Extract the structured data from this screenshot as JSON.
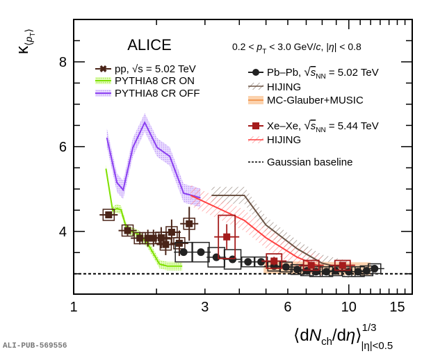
{
  "chart_data": {
    "type": "scatter",
    "title": "ALICE",
    "subtitle": "0.2 < p_T < 3.0 GeV/c, |η| < 0.8",
    "xlabel": "⟨dN_ch/dη⟩^(1/3) |η|<0.5",
    "ylabel": "κ⟨p_T⟩",
    "xscale": "log",
    "xlim": [
      1,
      17
    ],
    "ylim": [
      2.52,
      9.0
    ],
    "xticks": [
      1,
      3,
      6,
      10,
      15
    ],
    "xtick_labels": [
      "1",
      "3",
      "6",
      "10",
      "15"
    ],
    "yticks": [
      4,
      6,
      8
    ],
    "ytick_labels": [
      "4",
      "6",
      "8"
    ],
    "legend_left": "top-left",
    "legend_right": "top-right",
    "series": [
      {
        "name": "pp, √s = 5.02 TeV",
        "kind": "points",
        "marker": "x-star",
        "color": "#4a2418",
        "x": [
          1.34,
          1.57,
          1.74,
          1.86,
          1.95,
          2.08,
          2.16,
          2.27,
          2.42,
          2.63
        ],
        "y": [
          4.39,
          4.02,
          3.84,
          3.84,
          3.84,
          3.85,
          3.69,
          3.98,
          3.72,
          4.18
        ],
        "yerr": [
          0.08,
          0.12,
          0.15,
          0.2,
          0.2,
          0.25,
          0.25,
          0.3,
          0.3,
          0.4
        ]
      },
      {
        "name": "PYTHIA8 CR ON",
        "kind": "band",
        "color": "#7fe000",
        "x": [
          1.31,
          1.386,
          1.436,
          1.486,
          1.56,
          1.72,
          1.855,
          2.05,
          2.19,
          2.48
        ],
        "y": [
          5.48,
          4.49,
          4.54,
          4.51,
          4.05,
          3.93,
          3.72,
          3.23,
          3.18,
          3.18
        ],
        "err": 0.1
      },
      {
        "name": "PYTHIA8 CR OFF",
        "kind": "band",
        "color": "#8a3ff0",
        "x": [
          1.32,
          1.436,
          1.513,
          1.641,
          1.812,
          2.01,
          2.235,
          2.51,
          2.69,
          2.89
        ],
        "y": [
          6.21,
          5.15,
          4.98,
          5.98,
          6.57,
          5.98,
          5.77,
          4.9,
          4.85,
          4.79
        ],
        "err": 0.22
      },
      {
        "name": "Pb–Pb, √s_NN = 5.02 TeV",
        "kind": "points",
        "marker": "circle",
        "color": "#222222",
        "x": [
          2.51,
          2.9,
          3.3,
          3.78,
          4.3,
          4.8,
          5.35,
          5.91,
          6.49,
          7.05,
          7.6,
          8.29,
          8.94,
          10.0,
          10.8,
          11.6,
          12.4
        ],
        "y": [
          3.51,
          3.51,
          3.39,
          3.34,
          3.28,
          3.28,
          3.18,
          3.16,
          3.1,
          3.07,
          3.05,
          3.05,
          3.07,
          3.05,
          3.05,
          3.07,
          3.12
        ],
        "syst_box": true
      },
      {
        "name": "HIJING (Pb–Pb)",
        "kind": "hatched-band",
        "color": "#6b5344",
        "x": [
          3.17,
          4.17,
          5.0,
          6.49,
          8.0,
          10.0
        ],
        "y": [
          4.85,
          4.85,
          4.15,
          3.59,
          3.25,
          3.1
        ],
        "err": 0.2
      },
      {
        "name": "MC-Glauber+MUSIC",
        "kind": "band",
        "color": "#f7a766",
        "x": [
          4.9,
          6.5,
          8.0,
          10.0,
          12.0
        ],
        "y": [
          3.15,
          3.14,
          3.13,
          3.12,
          3.12
        ],
        "err": 0.15
      },
      {
        "name": "Xe–Xe, √s_NN = 5.44 TeV",
        "kind": "points",
        "marker": "square",
        "color": "#a51c1c",
        "x": [
          3.6,
          5.35,
          7.3,
          9.49
        ],
        "y": [
          3.87,
          3.3,
          3.2,
          3.2
        ],
        "yerr": [
          0.3,
          0.1,
          0.05,
          0.05
        ],
        "syst_box": true
      },
      {
        "name": "HIJING (Xe–Xe)",
        "kind": "hatched-band",
        "color": "#ff4040",
        "x": [
          2.66,
          4.17,
          5.0,
          6.49,
          8.0
        ],
        "y": [
          4.85,
          4.26,
          3.85,
          3.39,
          3.15
        ],
        "err": 0.25
      },
      {
        "name": "Gaussian baseline",
        "kind": "hline",
        "color": "#000000",
        "y": 3.0
      }
    ]
  },
  "labels": {
    "experiment": "ALICE",
    "kinematic_cut": "0.2 < pT < 3.0 GeV/c, |η| < 0.8",
    "legend": {
      "pp": "pp, √s = 5.02 TeV",
      "pythia_on": "PYTHIA8 CR ON",
      "pythia_off": "PYTHIA8 CR OFF",
      "pbpb": "Pb–Pb, √sNN = 5.02 TeV",
      "hijing_pbpb": "HIJING",
      "music": "MC-Glauber+MUSIC",
      "xexe": "Xe–Xe, √sNN = 5.44 TeV",
      "hijing_xexe": "HIJING",
      "baseline": "Gaussian baseline"
    },
    "pub_id": "ALI-PUB-569556"
  }
}
